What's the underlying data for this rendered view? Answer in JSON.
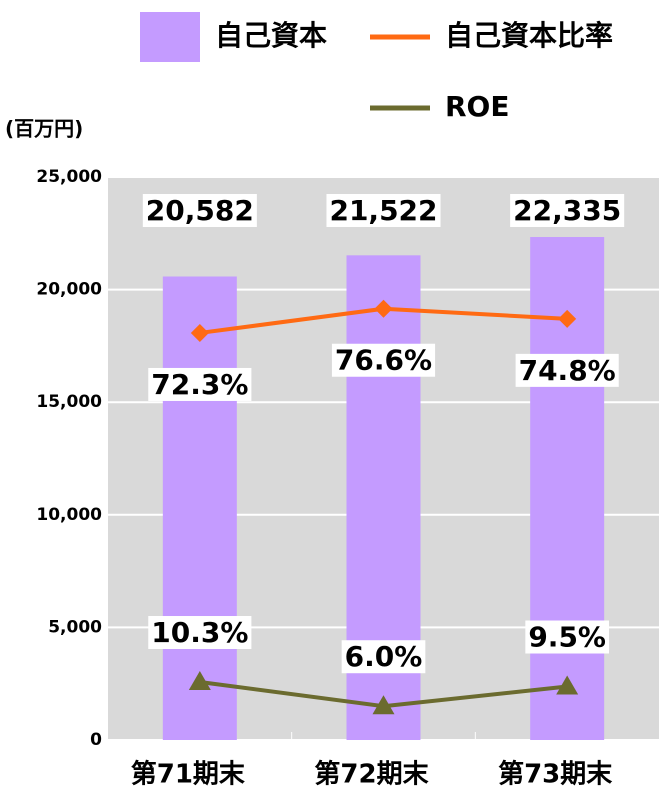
{
  "chart_data": {
    "type": "bar",
    "y_label": "(百万円)",
    "categories": [
      "第71期末",
      "第72期末",
      "第73期末"
    ],
    "series": [
      {
        "name": "自己資本",
        "type": "bar",
        "color": "#c49bff",
        "values": [
          20582,
          21522,
          22335
        ],
        "value_labels": [
          "20,582",
          "21,522",
          "22,335"
        ]
      },
      {
        "name": "自己資本比率",
        "type": "line",
        "axis": "y2",
        "color": "#ff6a13",
        "marker": "diamond",
        "values": [
          72.3,
          76.6,
          74.8
        ],
        "value_labels": [
          "72.3%",
          "76.6%",
          "74.8%"
        ]
      },
      {
        "name": "ROE",
        "type": "line",
        "axis": "y2",
        "color": "#6b6b2f",
        "marker": "triangle",
        "values": [
          10.3,
          6.0,
          9.5
        ],
        "value_labels": [
          "10.3%",
          "6.0%",
          "9.5%"
        ]
      }
    ],
    "ylim": [
      0,
      25000
    ],
    "yticks": [
      0,
      {
        "value": 5000,
        "label": "5,000"
      },
      {
        "value": 10000,
        "label": "10,000"
      },
      {
        "value": 15000,
        "label": "15,000"
      },
      {
        "value": 20000,
        "label": "20,000"
      },
      {
        "value": 25000,
        "label": "25,000"
      }
    ],
    "y2lim": [
      0,
      100
    ],
    "grid": true
  }
}
